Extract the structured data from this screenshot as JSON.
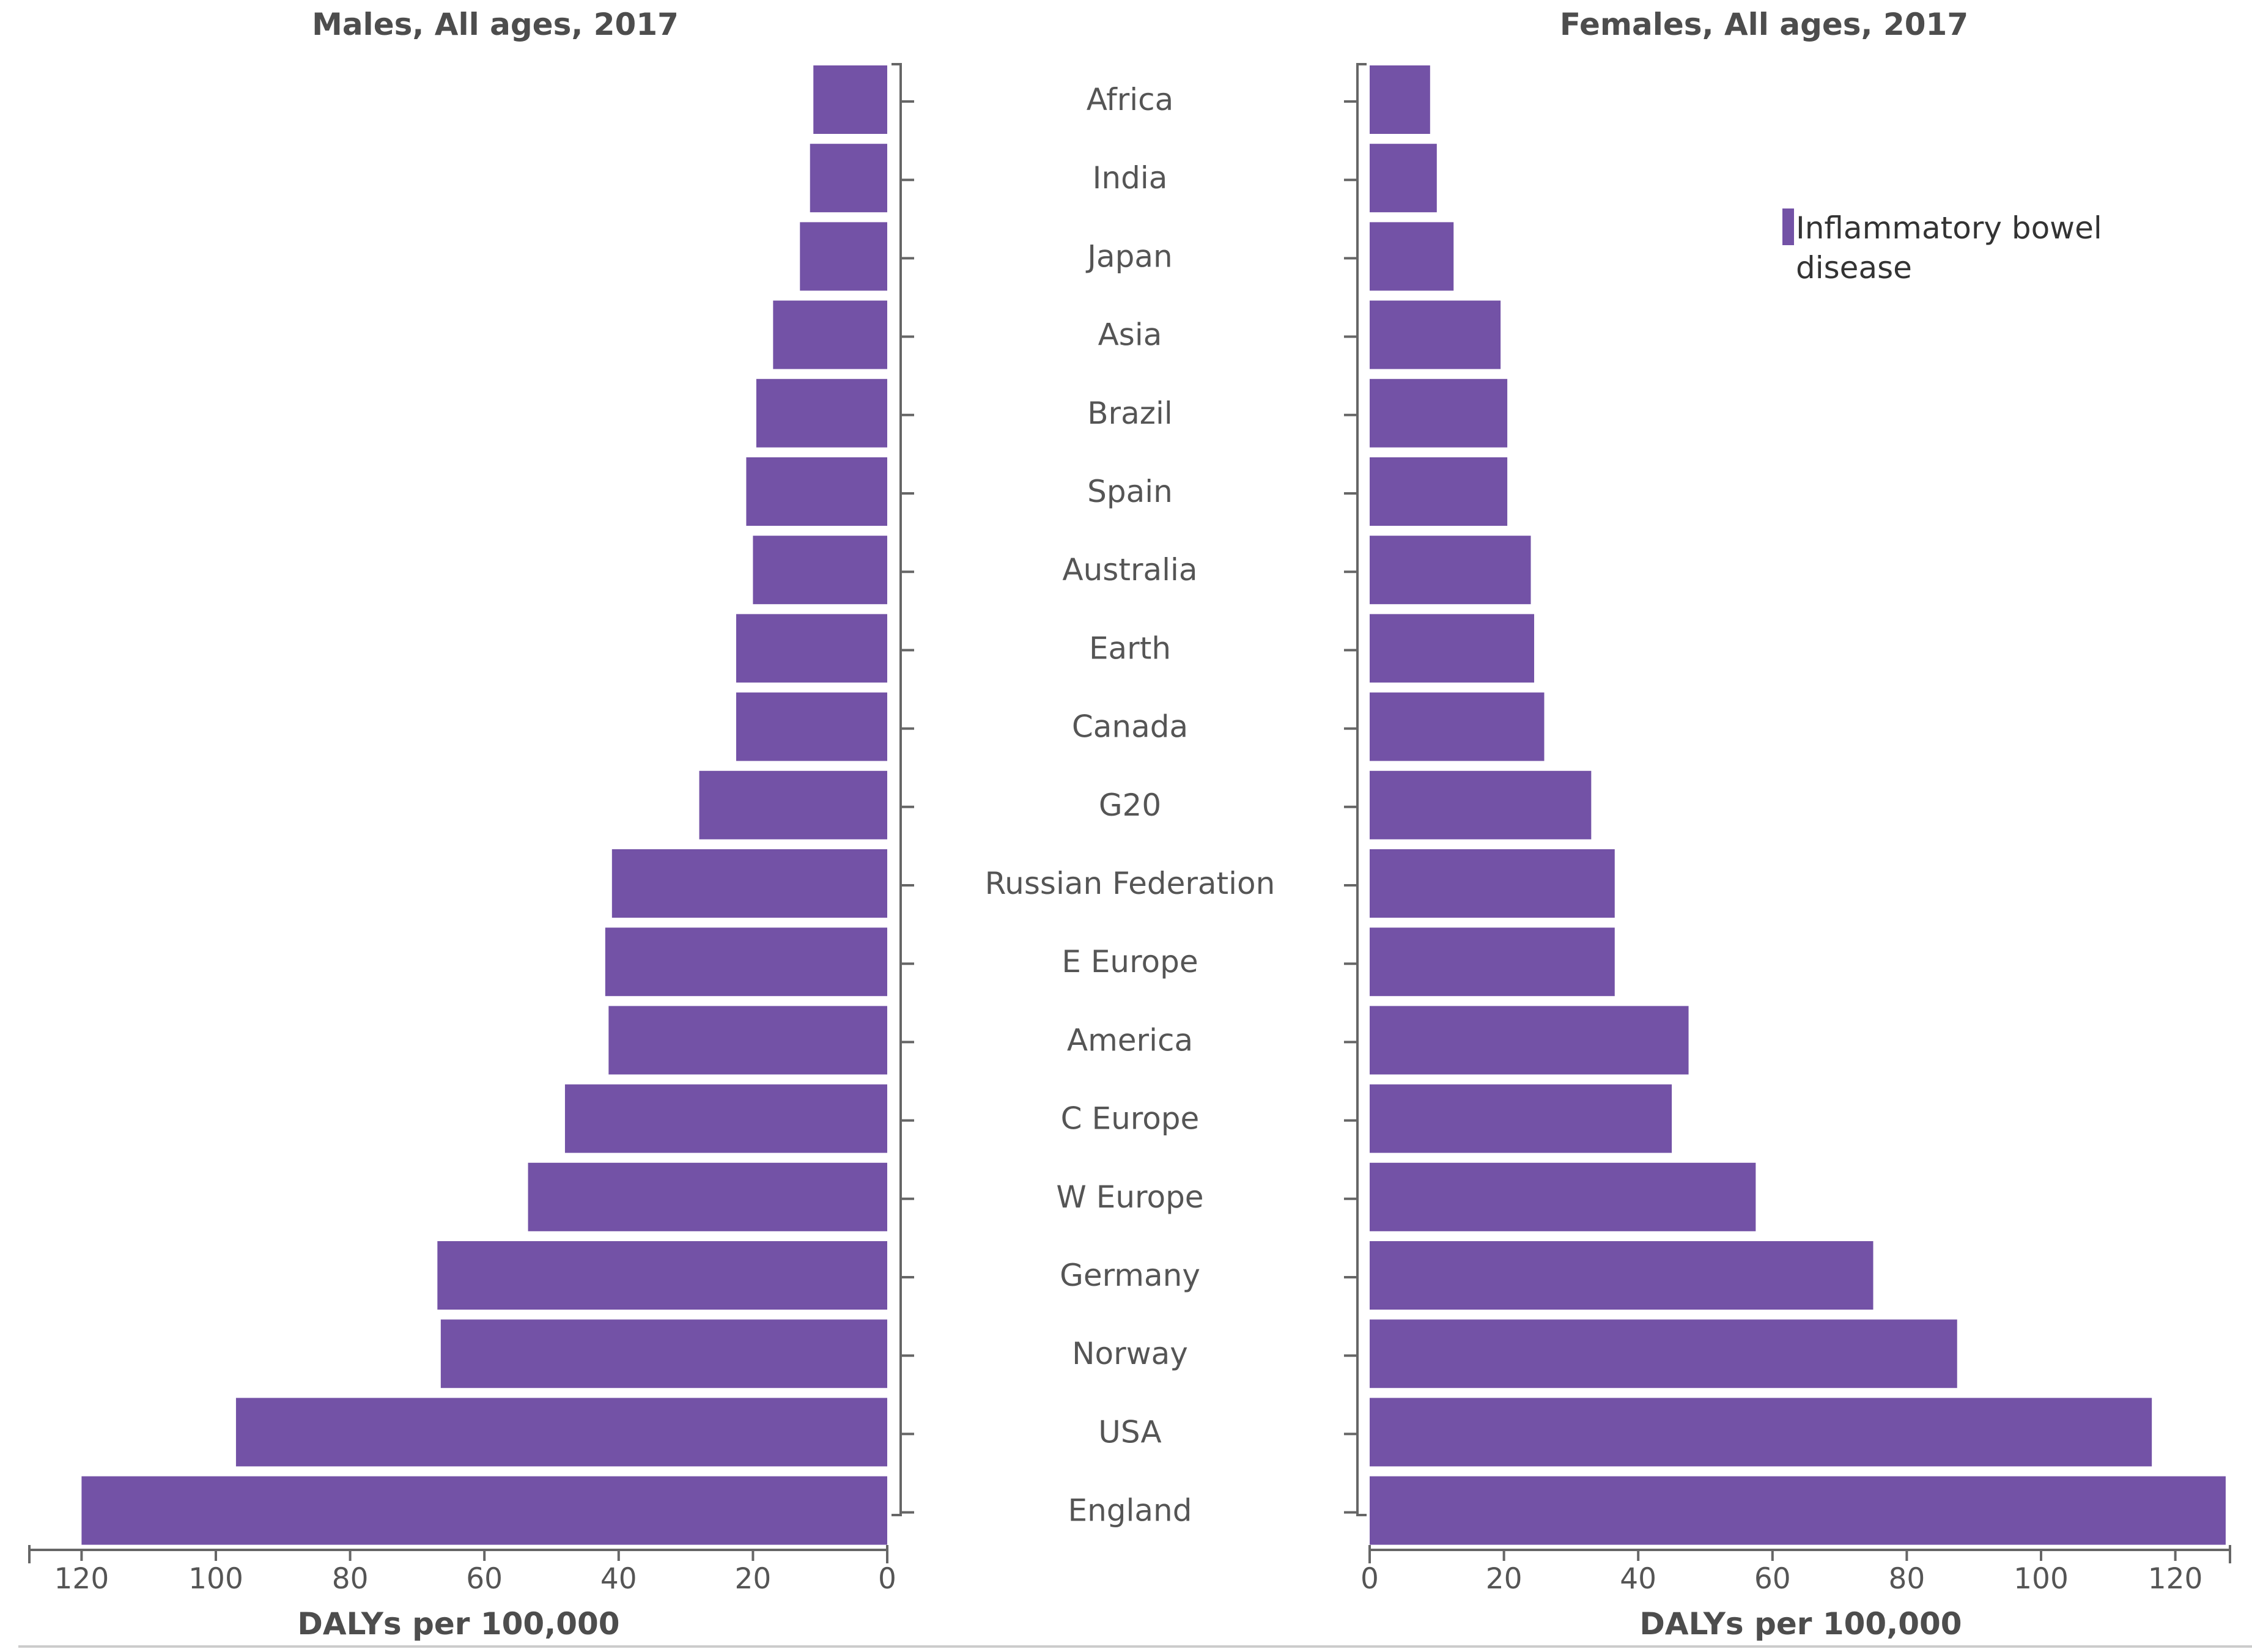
{
  "chart_data": {
    "type": "bar",
    "orientation": "horizontal",
    "layout": "butterfly",
    "colors": {
      "bar": "#7352a6"
    },
    "categories": [
      "Africa",
      "India",
      "Japan",
      "Asia",
      "Brazil",
      "Spain",
      "Australia",
      "Earth",
      "Canada",
      "G20",
      "Russian Federation",
      "E Europe",
      "America",
      "C Europe",
      "W Europe",
      "Germany",
      "Norway",
      "USA",
      "England"
    ],
    "legend": {
      "position": "top-right",
      "label_line1": "Inflammatory bowel",
      "label_line2": "disease"
    },
    "panels": [
      {
        "id": "males",
        "title": "Males, All ages, 2017",
        "xlabel": "DALYs per 100,000",
        "xlim": [
          0,
          128
        ],
        "xticks": [
          0,
          20,
          40,
          60,
          80,
          100,
          120
        ],
        "series": [
          {
            "name": "Inflammatory bowel disease",
            "values": [
              11,
              11.5,
              13,
              17,
              19.5,
              21,
              20,
              22.5,
              22.5,
              28,
              41,
              42,
              41.5,
              48,
              53.5,
              67,
              66.5,
              97,
              120
            ]
          }
        ]
      },
      {
        "id": "females",
        "title": "Females, All ages, 2017",
        "xlabel": "DALYs per 100,000",
        "xlim": [
          0,
          128
        ],
        "xticks": [
          0,
          20,
          40,
          60,
          80,
          100,
          120
        ],
        "series": [
          {
            "name": "Inflammatory bowel disease",
            "values": [
              9,
              10,
              12.5,
              19.5,
              20.5,
              20.5,
              24,
              24.5,
              26,
              33,
              36.5,
              36.5,
              47.5,
              45,
              57.5,
              75,
              87.5,
              116.5,
              127.5
            ]
          }
        ]
      }
    ]
  }
}
